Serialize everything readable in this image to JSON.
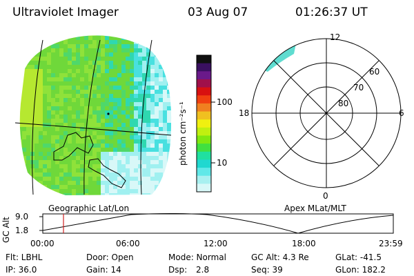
{
  "header": {
    "instrument": "Ultraviolet Imager",
    "date": "03 Aug 07",
    "time": "01:26:37 UT"
  },
  "colorbar": {
    "unit_label": "photon cm⁻²s⁻¹",
    "ticks": [
      "100",
      "10"
    ],
    "colors": [
      "#101010",
      "#3a1060",
      "#6a1a8a",
      "#a0104a",
      "#d81010",
      "#f04010",
      "#f08020",
      "#f0c020",
      "#f0f010",
      "#c0f010",
      "#80e810",
      "#40e040",
      "#20e0a0",
      "#20d8d0",
      "#60e8e8",
      "#a8f0f0",
      "#d8f8f8"
    ]
  },
  "geo_map": {
    "label": "Geographic Lat/Lon",
    "palette": [
      "#6fd83a",
      "#8fe23a",
      "#4fd86a",
      "#2fd8b0",
      "#48e0e0",
      "#a0f0f0",
      "#d8f8f8",
      "#b6e830"
    ]
  },
  "polar_plot": {
    "label": "Apex MLat/MLT",
    "mlt_labels": [
      "12",
      "18",
      "6",
      "0"
    ],
    "mlat_labels": [
      "60",
      "70",
      "80"
    ]
  },
  "altitude_plot": {
    "ylabel": "GC Alt",
    "yticks": [
      "9.0",
      "1.8"
    ],
    "xticks": [
      "00:00",
      "06:00",
      "12:00",
      "18:00",
      "23:59"
    ],
    "marker_color": "#d02020"
  },
  "status": {
    "filter": "Flt: LBHL",
    "door": "Door: Open",
    "mode": "Mode: Normal",
    "gc_alt": "GC Alt: 4.3 Re",
    "glat": "GLat: -41.5",
    "ip": "IP: 36.0",
    "gain": "Gain: 14",
    "dsp_label": "Dsp:",
    "dsp_value": "2.8",
    "seq": "Seq: 39",
    "glon": "GLon: 182.2"
  }
}
